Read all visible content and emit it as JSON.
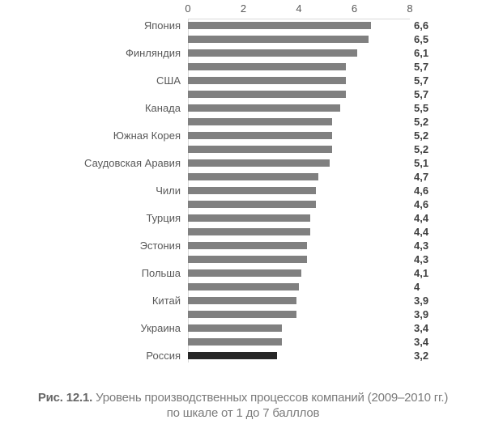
{
  "chart_data": {
    "type": "bar",
    "orientation": "horizontal",
    "title": "",
    "xlabel": "",
    "ylabel": "",
    "xlim": [
      0,
      8
    ],
    "x_ticks": [
      "0",
      "2",
      "4",
      "6",
      "8"
    ],
    "grid": false,
    "bar_color": "#808080",
    "highlight_color": "#262626",
    "axis_line_color": "#d9d9d9",
    "bars": [
      {
        "label": "Япония",
        "value": 6.6,
        "display": "6,6",
        "highlight": false
      },
      {
        "label": "",
        "value": 6.5,
        "display": "6,5",
        "highlight": false
      },
      {
        "label": "Финляндия",
        "value": 6.1,
        "display": "6,1",
        "highlight": false
      },
      {
        "label": "",
        "value": 5.7,
        "display": "5,7",
        "highlight": false
      },
      {
        "label": "США",
        "value": 5.7,
        "display": "5,7",
        "highlight": false
      },
      {
        "label": "",
        "value": 5.7,
        "display": "5,7",
        "highlight": false
      },
      {
        "label": "Канада",
        "value": 5.5,
        "display": "5,5",
        "highlight": false
      },
      {
        "label": "",
        "value": 5.2,
        "display": "5,2",
        "highlight": false
      },
      {
        "label": "Южная Корея",
        "value": 5.2,
        "display": "5,2",
        "highlight": false
      },
      {
        "label": "",
        "value": 5.2,
        "display": "5,2",
        "highlight": false
      },
      {
        "label": "Саудовская Аравия",
        "value": 5.1,
        "display": "5,1",
        "highlight": false
      },
      {
        "label": "",
        "value": 4.7,
        "display": "4,7",
        "highlight": false
      },
      {
        "label": "Чили",
        "value": 4.6,
        "display": "4,6",
        "highlight": false
      },
      {
        "label": "",
        "value": 4.6,
        "display": "4,6",
        "highlight": false
      },
      {
        "label": "Турция",
        "value": 4.4,
        "display": "4,4",
        "highlight": false
      },
      {
        "label": "",
        "value": 4.4,
        "display": "4,4",
        "highlight": false
      },
      {
        "label": "Эстония",
        "value": 4.3,
        "display": "4,3",
        "highlight": false
      },
      {
        "label": "",
        "value": 4.3,
        "display": "4,3",
        "highlight": false
      },
      {
        "label": "Польша",
        "value": 4.1,
        "display": "4,1",
        "highlight": false
      },
      {
        "label": "",
        "value": 4.0,
        "display": "4",
        "highlight": false
      },
      {
        "label": "Китай",
        "value": 3.9,
        "display": "3,9",
        "highlight": false
      },
      {
        "label": "",
        "value": 3.9,
        "display": "3,9",
        "highlight": false
      },
      {
        "label": "Украина",
        "value": 3.4,
        "display": "3,4",
        "highlight": false
      },
      {
        "label": "",
        "value": 3.4,
        "display": "3,4",
        "highlight": false
      },
      {
        "label": "Россия",
        "value": 3.2,
        "display": "3,2",
        "highlight": true
      }
    ]
  },
  "caption": {
    "prefix": "Рис. 12.1.",
    "line1": "Уровень производственных процессов компаний (2009–2010 гг.)",
    "line2": "по шкале от 1 до 7 балллов"
  }
}
